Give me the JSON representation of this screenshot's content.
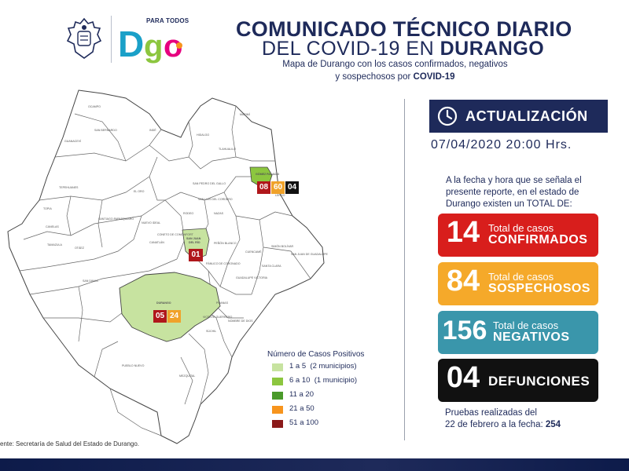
{
  "header": {
    "logo_text_para": "PARA TODOS",
    "logo_brand": "Dgo",
    "title_line1": "COMUNICADO TÉCNICO DIARIO",
    "title_line2_prefix": "DEL COVID-19 EN ",
    "title_line2_bold": "DURANGO",
    "subtitle_line1": "Mapa de Durango con los casos confirmados, negativos",
    "subtitle_line2_prefix": "y sospechosos por ",
    "subtitle_line2_bold": "COVID-19"
  },
  "update": {
    "label": "ACTUALIZACIÓN",
    "icon": "clock-icon",
    "datetime": "07/04/2020  20:00 Hrs."
  },
  "intro": {
    "line1": "A la fecha y hora que se señala el",
    "line2": "presente reporte, en el estado de",
    "line3": "Durango existen un TOTAL DE:"
  },
  "stats": {
    "confirmados": {
      "value": "14",
      "line1": "Total de casos",
      "line2": "CONFIRMADOS",
      "color": "#d81e1c"
    },
    "sospechosos": {
      "value": "84",
      "line1": "Total de casos",
      "line2": "SOSPECHOSOS",
      "color": "#f5a92a"
    },
    "negativos": {
      "value": "156",
      "line1": "Total de casos",
      "line2": "NEGATIVOS",
      "color": "#3a96ab"
    },
    "defunciones": {
      "value": "04",
      "line2": "DEFUNCIONES",
      "color": "#111111"
    }
  },
  "pruebas": {
    "line1": "Pruebas realizadas del",
    "line2_prefix": "22 de febrero a la fecha: ",
    "line2_value": "254"
  },
  "map": {
    "municipios": {
      "gomez_palacio": {
        "name": "GÓMEZ PALACIO",
        "counts": [
          "08",
          "60",
          "04"
        ],
        "colors": [
          "#b0171b",
          "#f0a22a",
          "#111111"
        ]
      },
      "san_juan_del_rio": {
        "name_line1": "SAN JUAN",
        "name_line2": "DEL RÍO",
        "counts": [
          "01"
        ],
        "colors": [
          "#b0171b"
        ]
      },
      "durango": {
        "name": "DURANGO",
        "counts": [
          "05",
          "24"
        ],
        "colors": [
          "#b0171b",
          "#f0a22a"
        ]
      }
    },
    "labels": [
      "OCAMPO",
      "SAN BERNARDO",
      "GUANACEVÍ",
      "INDÉ",
      "EL ORO",
      "HIDALGO",
      "TEPEHUANES",
      "SANTIAGO PAPASQUIARO",
      "TOPIA",
      "CANELAS",
      "OTÁEZ",
      "TAMAZULA",
      "SAN DIMAS",
      "PUEBLO NUEVO",
      "MEZQUITAL",
      "MAPIMÍ",
      "TLAHUALILO",
      "LERDO",
      "NAZAS",
      "RODEO",
      "SAN LUIS DEL CORDERO",
      "SAN PEDRO DEL GALLO",
      "CUENCAMÉ",
      "SIMÓN BOLÍVAR",
      "SANTA CLARA",
      "SAN JUAN DE GUADALUPE",
      "GUADALUPE VICTORIA",
      "PEÑÓN BLANCO",
      "PÁNUCO DE CORONADO",
      "CANATLÁN",
      "NUEVO IDEAL",
      "CONETO DE COMONFORT",
      "POANAS",
      "NOMBRE DE DIOS",
      "VICENTE GUERRERO",
      "SÚCHIL"
    ]
  },
  "legend": {
    "title": "Número de Casos Positivos",
    "items": [
      {
        "label": "1 a 5",
        "note": "(2 municipios)",
        "color": "#c7e3a0"
      },
      {
        "label": "6 a 10",
        "note": "(1 municipio)",
        "color": "#8cc63f"
      },
      {
        "label": "11 a 20",
        "note": "",
        "color": "#4a9a2a"
      },
      {
        "label": "21 a 50",
        "note": "",
        "color": "#f7941d"
      },
      {
        "label": "51 a 100",
        "note": "",
        "color": "#8b1a1a"
      }
    ]
  },
  "source": "ente: Secretaría de Salud del Estado de Durango."
}
